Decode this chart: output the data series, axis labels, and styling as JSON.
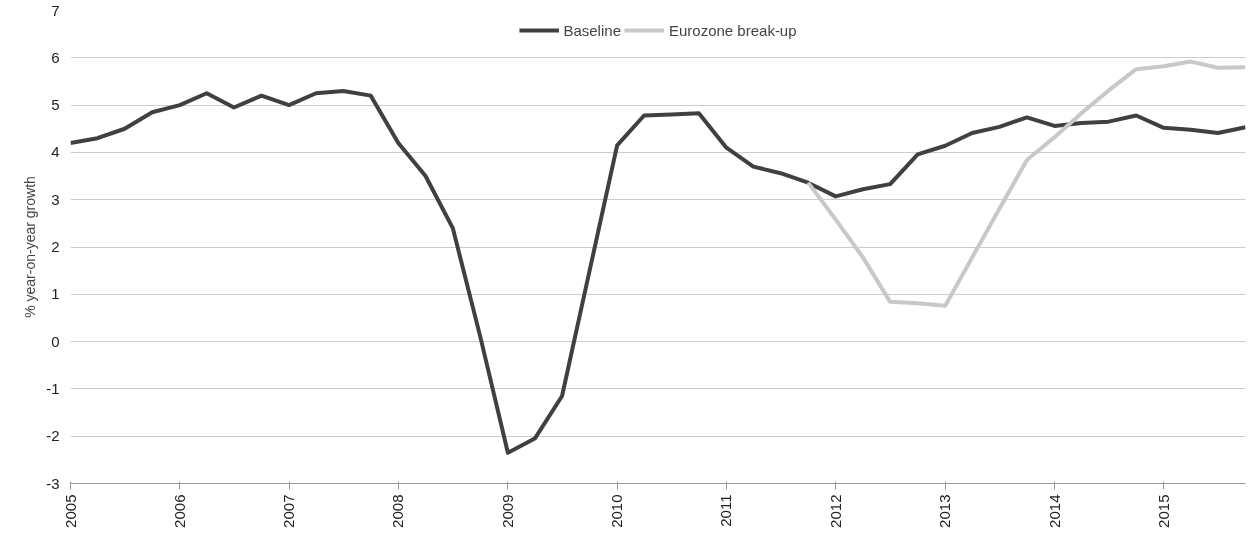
{
  "chart_data": {
    "type": "line",
    "ylabel": "% year-on-year growth",
    "x": [
      "2005-01",
      "2005-04",
      "2005-07",
      "2005-10",
      "2006-01",
      "2006-04",
      "2006-07",
      "2006-10",
      "2007-01",
      "2007-04",
      "2007-07",
      "2007-10",
      "2008-01",
      "2008-04",
      "2008-07",
      "2008-10",
      "2009-01",
      "2009-04",
      "2009-07",
      "2009-10",
      "2010-01",
      "2010-04",
      "2010-07",
      "2010-10",
      "2011-01",
      "2011-04",
      "2011-07",
      "2011-10",
      "2012-01",
      "2012-04",
      "2012-07",
      "2012-10",
      "2013-01",
      "2013-04",
      "2013-07",
      "2013-10",
      "2014-01",
      "2014-04",
      "2014-07",
      "2014-10",
      "2015-01",
      "2015-04",
      "2015-07",
      "2015-10"
    ],
    "series": [
      {
        "name": "Baseline",
        "color": "#404040",
        "values": [
          4.2,
          4.3,
          4.5,
          4.85,
          5.0,
          5.25,
          4.95,
          5.2,
          5.0,
          5.25,
          5.3,
          5.2,
          4.2,
          3.5,
          2.4,
          0.1,
          -2.35,
          -2.05,
          -1.15,
          1.5,
          4.15,
          4.78,
          4.8,
          4.83,
          4.1,
          3.7,
          3.56,
          3.36,
          3.07,
          3.22,
          3.33,
          3.96,
          4.14,
          4.41,
          4.54,
          4.74,
          4.56,
          4.62,
          4.65,
          4.78,
          4.52,
          4.48,
          4.41,
          4.53
        ]
      },
      {
        "name": "Eurozone break-up",
        "color": "#c8c8c8",
        "values": [
          null,
          null,
          null,
          null,
          null,
          null,
          null,
          null,
          null,
          null,
          null,
          null,
          null,
          null,
          null,
          null,
          null,
          null,
          null,
          null,
          null,
          null,
          null,
          null,
          null,
          null,
          null,
          3.36,
          2.58,
          1.78,
          0.84,
          0.81,
          0.76,
          1.78,
          2.81,
          3.84,
          4.32,
          4.83,
          5.31,
          5.76,
          5.82,
          5.92,
          5.79,
          5.8
        ]
      }
    ],
    "xlim": [
      "2005-01",
      "2015-10"
    ],
    "xticks": [
      "2005",
      "2006",
      "2007",
      "2008",
      "2009",
      "2010",
      "2011",
      "2012",
      "2013",
      "2014",
      "2015"
    ],
    "ylim": [
      -3,
      7
    ],
    "yticks": [
      -3,
      -2,
      -1,
      0,
      1,
      2,
      3,
      4,
      5,
      6,
      7
    ],
    "grid": "y",
    "legend": "top",
    "line_style": "solid",
    "marker": "none"
  }
}
